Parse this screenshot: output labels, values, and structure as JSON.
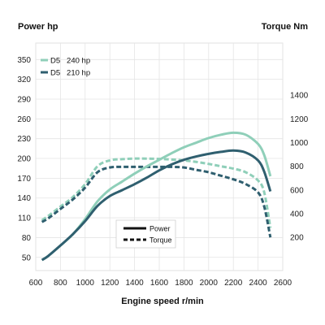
{
  "chart_data": {
    "type": "line",
    "left_axis_label": "Power hp",
    "right_axis_label": "Torque Nm",
    "xlabel": "Engine speed r/min",
    "xlim": [
      600,
      2600
    ],
    "x_ticks": [
      600,
      800,
      1000,
      1200,
      1400,
      1600,
      1800,
      2000,
      2200,
      2400,
      2600
    ],
    "left_ylim": [
      30,
      375
    ],
    "left_y_ticks": [
      50,
      80,
      110,
      140,
      170,
      200,
      230,
      260,
      290,
      320,
      350
    ],
    "right_ylim": [
      -80,
      1840
    ],
    "right_y_ticks": [
      200,
      400,
      600,
      800,
      1000,
      1200,
      1400
    ],
    "grid": true,
    "legend_models": [
      {
        "label": "D5   240 hp",
        "color": "#8fcfb9"
      },
      {
        "label": "D5   210 hp",
        "color": "#2f5f6f"
      }
    ],
    "legend_styles": [
      {
        "label": "Power",
        "style": "solid"
      },
      {
        "label": "Torque",
        "style": "dashed"
      }
    ],
    "series": [
      {
        "model": "D5   240 hp",
        "quantity": "Power",
        "axis": "left",
        "color": "#8fcfb9",
        "style": "solid",
        "x": [
          650,
          700,
          800,
          900,
          1000,
          1100,
          1200,
          1300,
          1400,
          1500,
          1600,
          1700,
          1800,
          1900,
          2000,
          2100,
          2200,
          2300,
          2400,
          2450,
          2500
        ],
        "values": [
          46,
          52,
          68,
          85,
          108,
          135,
          153,
          165,
          177,
          188,
          198,
          208,
          217,
          224,
          231,
          236,
          239,
          236,
          222,
          205,
          173
        ]
      },
      {
        "model": "D5   210 hp",
        "quantity": "Power",
        "axis": "left",
        "color": "#2f5f6f",
        "style": "solid",
        "x": [
          650,
          700,
          800,
          900,
          1000,
          1100,
          1200,
          1300,
          1400,
          1500,
          1600,
          1700,
          1800,
          1900,
          2000,
          2100,
          2200,
          2300,
          2400,
          2450,
          2500
        ],
        "values": [
          46,
          52,
          68,
          85,
          105,
          128,
          143,
          152,
          161,
          171,
          182,
          191,
          198,
          203,
          207,
          210,
          212,
          209,
          197,
          180,
          150
        ]
      },
      {
        "model": "D5   240 hp",
        "quantity": "Torque",
        "axis": "right",
        "color": "#8fcfb9",
        "style": "dashed",
        "x": [
          650,
          700,
          800,
          900,
          1000,
          1100,
          1200,
          1300,
          1400,
          1500,
          1600,
          1700,
          1800,
          1900,
          2000,
          2100,
          2200,
          2300,
          2400,
          2450,
          2500
        ],
        "values": [
          345,
          380,
          460,
          540,
          650,
          800,
          850,
          860,
          865,
          865,
          862,
          857,
          850,
          837,
          820,
          800,
          780,
          750,
          680,
          580,
          280
        ]
      },
      {
        "model": "D5   210 hp",
        "quantity": "Torque",
        "axis": "right",
        "color": "#2f5f6f",
        "style": "dashed",
        "x": [
          650,
          700,
          800,
          900,
          1000,
          1100,
          1200,
          1300,
          1400,
          1500,
          1600,
          1700,
          1800,
          1900,
          2000,
          2100,
          2200,
          2300,
          2400,
          2450,
          2500
        ],
        "values": [
          330,
          360,
          440,
          520,
          620,
          750,
          790,
          795,
          795,
          795,
          795,
          795,
          790,
          770,
          750,
          720,
          690,
          650,
          580,
          460,
          200
        ]
      }
    ]
  }
}
